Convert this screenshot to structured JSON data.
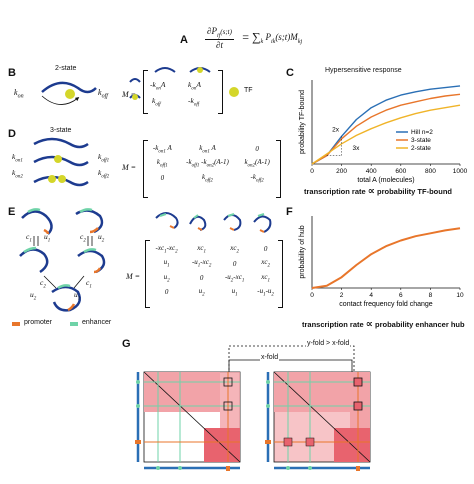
{
  "panels": {
    "A": {
      "label": "A",
      "eq_lhs_num": "∂P",
      "eq_lhs_sub": "ij",
      "eq_lhs_arg": "(s;t)",
      "eq_lhs_den": "∂t",
      "eq_rhs": "= ∑",
      "eq_rhs_sub": "k",
      "eq_rhs_term": "P",
      "eq_rhs_term_sub": "ik",
      "eq_rhs_term_arg": "(s;t)M",
      "eq_rhs_term_sub2": "kj"
    },
    "B": {
      "label": "B",
      "title": "2-state",
      "kon": "k",
      "kon_sub": "on",
      "koff": "k",
      "koff_sub": "off",
      "M": "M =",
      "matrix": [
        [
          "-k",
          "on",
          "A",
          "k",
          "on",
          "A"
        ],
        [
          "k",
          "off",
          "",
          "-k",
          "off",
          ""
        ]
      ],
      "tf_label": "TF"
    },
    "C": {
      "label": "C",
      "title": "Hypersensitive response",
      "ylabel": "probability TF-bound",
      "xlabel": "total A (molecules)",
      "annot_2x": "2x",
      "annot_3x": "3x",
      "caption_left": "transcription rate",
      "caption_sym": "∝",
      "caption_right": "probability TF-bound"
    },
    "D": {
      "label": "D",
      "title": "3-state",
      "kon1": "k",
      "kon1_sub": "on1",
      "kon2": "k",
      "kon2_sub": "on2",
      "koff1": "k",
      "koff1_sub": "off1",
      "koff2": "k",
      "koff2_sub": "off2",
      "M": "M ="
    },
    "E": {
      "label": "E",
      "c1": "c",
      "c1_sub": "1",
      "c2": "c",
      "c2_sub": "2",
      "u1": "u",
      "u1_sub": "1",
      "u2": "u",
      "u2_sub": "2",
      "M": "M =",
      "legend_promoter": "promoter",
      "legend_enhancer": "enhancer"
    },
    "F": {
      "label": "F",
      "ylabel": "probability of hub",
      "xlabel": "contact frequency fold change",
      "caption_left": "transcription rate",
      "caption_sym": "∝",
      "caption_right": "probability enhancer hub"
    },
    "G": {
      "label": "G",
      "yfold": "y-fold > x-fold",
      "xfold": "x-fold"
    }
  },
  "matrixD": [
    [
      "-k_on1 A",
      "k_on1 A",
      "0"
    ],
    [
      "k_off1",
      "-k_off1 -k_on2(A-1)",
      "k_on2(A-1)"
    ],
    [
      "0",
      "k_off2",
      "-k_off2"
    ]
  ],
  "matrixE": [
    [
      "-xc_1-xc_2",
      "xc_1",
      "xc_2",
      "0"
    ],
    [
      "u_1",
      "-u_1-xc_2",
      "0",
      "xc_2"
    ],
    [
      "u_2",
      "0",
      "-u_2-xc_1",
      "xc_1"
    ],
    [
      "0",
      "u_2",
      "u_1",
      "-u_1-u_2"
    ]
  ],
  "colors": {
    "blue": "#2a6fb5",
    "orange": "#e8762b",
    "yellow": "#f0b429",
    "red": "#d6452e",
    "pink": "#f2a3a8",
    "green": "#6fd3a8",
    "tf": "#d4d62a",
    "navy": "#1d3b8f"
  },
  "chart_data": [
    {
      "type": "line",
      "title": "Hypersensitive response",
      "xlabel": "total A (molecules)",
      "ylabel": "probability TF-bound",
      "xlim": [
        0,
        1000
      ],
      "ylim": [
        0,
        1
      ],
      "xticks": [
        "0",
        "200",
        "400",
        "600",
        "800",
        "1000"
      ],
      "yticks": [],
      "legend_position": "bottom-right",
      "x": [
        0,
        100,
        200,
        300,
        400,
        500,
        600,
        700,
        800,
        900,
        1000
      ],
      "series": [
        {
          "name": "Hill n=2",
          "color": "#2a6fb5",
          "values": [
            0,
            0.1,
            0.33,
            0.53,
            0.67,
            0.76,
            0.82,
            0.86,
            0.89,
            0.91,
            0.93
          ]
        },
        {
          "name": "3-state",
          "color": "#e8762b",
          "values": [
            0,
            0.1,
            0.3,
            0.45,
            0.56,
            0.64,
            0.7,
            0.74,
            0.78,
            0.81,
            0.83
          ]
        },
        {
          "name": "2-state",
          "color": "#f0b429",
          "values": [
            0,
            0.12,
            0.24,
            0.34,
            0.42,
            0.49,
            0.55,
            0.6,
            0.64,
            0.67,
            0.7
          ]
        }
      ]
    },
    {
      "type": "line",
      "xlabel": "contact frequency fold change",
      "ylabel": "probability of hub",
      "xlim": [
        0,
        10
      ],
      "ylim": [
        0,
        1
      ],
      "xticks": [
        "0",
        "2",
        "4",
        "6",
        "8",
        "10"
      ],
      "yticks": [],
      "x": [
        0,
        1,
        2,
        3,
        4,
        5,
        6,
        7,
        8,
        9,
        10
      ],
      "series": [
        {
          "color": "#e8762b",
          "values": [
            0,
            0.03,
            0.15,
            0.32,
            0.47,
            0.58,
            0.66,
            0.72,
            0.76,
            0.8,
            0.83
          ]
        }
      ]
    }
  ]
}
